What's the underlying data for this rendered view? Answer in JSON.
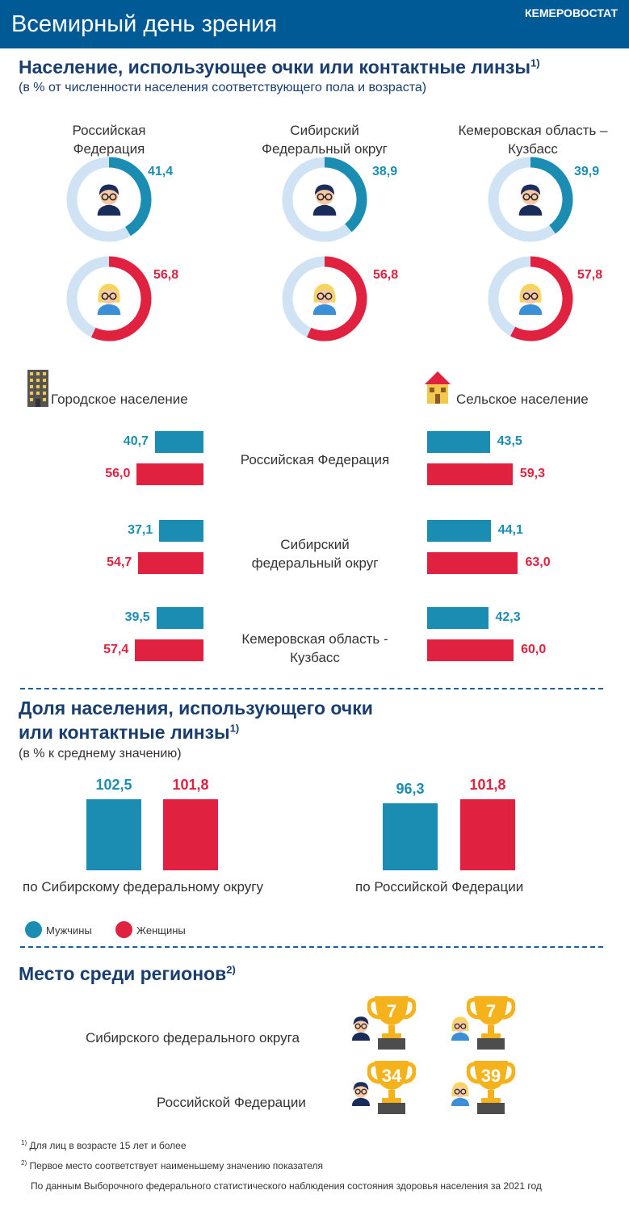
{
  "header": {
    "title": "Всемирный день зрения",
    "org": "КЕМЕРОВОСТАТ"
  },
  "section1": {
    "title": "Население, использующее очки или контактные линзы",
    "title_note": "1)",
    "subtitle": "(в %  от численности населения соответствующего пола и возраста)",
    "regions": [
      {
        "label_line1": "Российская",
        "label_line2": "Федерация",
        "men": "41,4",
        "women": "56,8"
      },
      {
        "label_line1": "Сибирский",
        "label_line2": "Федеральный округ",
        "men": "38,9",
        "women": "56,8"
      },
      {
        "label_line1": "Кемеровская область –",
        "label_line2": "Кузбасс",
        "men": "39,9",
        "women": "57,8"
      }
    ]
  },
  "section2": {
    "urban_label": "Городское население",
    "rural_label": "Сельское население",
    "rows": [
      {
        "label_line1": "Российская Федерация",
        "label_line2": "",
        "urban_men": "40,7",
        "urban_women": "56,0",
        "rural_men": "43,5",
        "rural_women": "59,3"
      },
      {
        "label_line1": "Сибирский",
        "label_line2": "федеральный округ",
        "urban_men": "37,1",
        "urban_women": "54,7",
        "rural_men": "44,1",
        "rural_women": "63,0"
      },
      {
        "label_line1": "Кемеровская область -",
        "label_line2": "Кузбасс",
        "urban_men": "39,5",
        "urban_women": "57,4",
        "rural_men": "42,3",
        "rural_women": "60,0"
      }
    ]
  },
  "section3": {
    "title_line1": "Доля населения, использующего очки",
    "title_line2": "или контактные линзы",
    "title_note": "1)",
    "subtitle": "(в % к среднему значению)",
    "groups": [
      {
        "label": "по Сибирскому федеральному округу",
        "men": "102,5",
        "women": "101,8"
      },
      {
        "label": "по Российской Федерации",
        "men": "96,3",
        "women": "101,8"
      }
    ],
    "legend": {
      "men": "Мужчины",
      "women": "Женщины"
    }
  },
  "section4": {
    "title": "Место среди регионов",
    "title_note": "2)",
    "rows": [
      {
        "label": "Сибирского федерального округа",
        "men_rank": "7",
        "women_rank": "7"
      },
      {
        "label": "Российской Федерации",
        "men_rank": "34",
        "women_rank": "39"
      }
    ]
  },
  "footnotes": {
    "note1_mark": "1)",
    "note1": "Для лиц в возрасте 15 лет и более",
    "note2_mark": "2)",
    "note2": "Первое место соответствует наименьшему значению показателя",
    "source": "По данным Выборочного федерального статистического наблюдения состояния здоровья населения за 2021 год"
  },
  "colors": {
    "men": "#1b8db3",
    "women": "#e0213f",
    "track": "#cfe3f5",
    "header": "#005a96",
    "title": "#1a3e6e",
    "trophy": "#f5b21b"
  },
  "chart_data": [
    {
      "type": "pie",
      "title": "Население, использующее очки или контактные линзы",
      "categories": [
        "Российская Федерация",
        "Сибирский Федеральный округ",
        "Кемеровская область – Кузбасс"
      ],
      "series": [
        {
          "name": "Мужчины",
          "values": [
            41.4,
            38.9,
            39.9
          ]
        },
        {
          "name": "Женщины",
          "values": [
            56.8,
            56.8,
            57.8
          ]
        }
      ]
    },
    {
      "type": "bar",
      "categories": [
        "Российская Федерация",
        "Сибирский федеральный округ",
        "Кемеровская область - Кузбасс"
      ],
      "series": [
        {
          "name": "Городское население — Мужчины",
          "values": [
            40.7,
            37.1,
            39.5
          ]
        },
        {
          "name": "Городское население — Женщины",
          "values": [
            56.0,
            54.7,
            57.4
          ]
        },
        {
          "name": "Сельское население — Мужчины",
          "values": [
            43.5,
            44.1,
            42.3
          ]
        },
        {
          "name": "Сельское население — Женщины",
          "values": [
            59.3,
            63.0,
            60.0
          ]
        }
      ]
    },
    {
      "type": "bar",
      "title": "Доля населения, использующего очки или контактные линзы",
      "categories": [
        "по Сибирскому федеральному округу",
        "по Российской Федерации"
      ],
      "series": [
        {
          "name": "Мужчины",
          "values": [
            102.5,
            96.3
          ]
        },
        {
          "name": "Женщины",
          "values": [
            101.8,
            101.8
          ]
        }
      ]
    },
    {
      "type": "table",
      "title": "Место среди регионов",
      "categories": [
        "Сибирского федерального округа",
        "Российской Федерации"
      ],
      "series": [
        {
          "name": "Мужчины",
          "values": [
            7,
            34
          ]
        },
        {
          "name": "Женщины",
          "values": [
            7,
            39
          ]
        }
      ]
    }
  ]
}
